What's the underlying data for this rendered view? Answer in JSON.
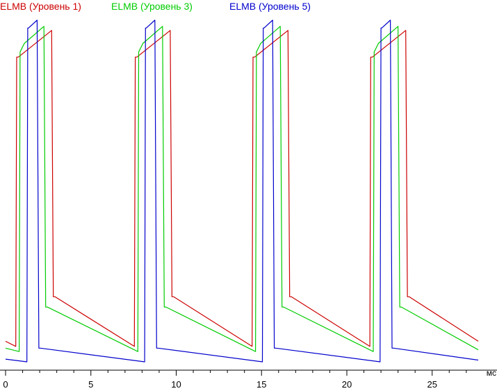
{
  "chart_data": {
    "type": "line",
    "title": "",
    "xlabel": "",
    "ylabel": "",
    "x_unit": "мс",
    "xlim": [
      0,
      27.7
    ],
    "ylim": [
      0,
      1
    ],
    "grid": false,
    "legend_placement": "top-left",
    "x_ticks": [
      0,
      5,
      10,
      15,
      20,
      25
    ],
    "period_ms": 6.9,
    "series": [
      {
        "name": "ELMB (Уровень 1)",
        "color": "#cc0000",
        "x": [
          0,
          0.6,
          0.65,
          0.75,
          2.7,
          2.8,
          2.9,
          7.55,
          7.6,
          7.7,
          9.65,
          9.75,
          9.85,
          14.45,
          14.5,
          14.6,
          16.55,
          16.65,
          16.75,
          21.35,
          21.4,
          21.5,
          23.45,
          23.55,
          23.65,
          27.7
        ],
        "y": [
          0.06,
          0.045,
          0.89,
          0.89,
          0.968,
          0.19,
          0.19,
          0.045,
          0.89,
          0.89,
          0.968,
          0.19,
          0.19,
          0.045,
          0.89,
          0.89,
          0.968,
          0.19,
          0.19,
          0.045,
          0.89,
          0.89,
          0.968,
          0.19,
          0.19,
          0.06
        ]
      },
      {
        "name": "ELMB (Уровень 3)",
        "color": "#00cc00",
        "x": [
          0,
          0.8,
          0.85,
          1.1,
          2.25,
          2.35,
          2.45,
          7.75,
          7.8,
          8.05,
          9.2,
          9.3,
          9.4,
          14.65,
          14.7,
          14.95,
          16.1,
          16.2,
          16.3,
          21.55,
          21.6,
          21.85,
          23.0,
          23.1,
          23.2,
          27.7
        ],
        "y": [
          0.04,
          0.03,
          0.905,
          0.93,
          0.98,
          0.16,
          0.16,
          0.03,
          0.905,
          0.93,
          0.98,
          0.16,
          0.16,
          0.03,
          0.905,
          0.93,
          0.98,
          0.16,
          0.16,
          0.03,
          0.905,
          0.93,
          0.98,
          0.16,
          0.16,
          0.035
        ]
      },
      {
        "name": "ELMB (Уровень 5)",
        "color": "#0000cc",
        "x": [
          0,
          1.25,
          1.3,
          1.35,
          1.85,
          1.95,
          2.05,
          8.15,
          8.2,
          8.25,
          8.75,
          8.85,
          8.95,
          15.05,
          15.1,
          15.15,
          15.65,
          15.75,
          15.85,
          21.95,
          22.0,
          22.05,
          22.55,
          22.65,
          22.75,
          27.7
        ],
        "y": [
          0.008,
          0.0,
          0.975,
          0.975,
          0.998,
          0.04,
          0.04,
          0.0,
          0.975,
          0.975,
          0.998,
          0.04,
          0.04,
          0.0,
          0.975,
          0.975,
          0.998,
          0.04,
          0.04,
          0.0,
          0.975,
          0.975,
          0.998,
          0.04,
          0.04,
          0.005
        ]
      }
    ]
  }
}
